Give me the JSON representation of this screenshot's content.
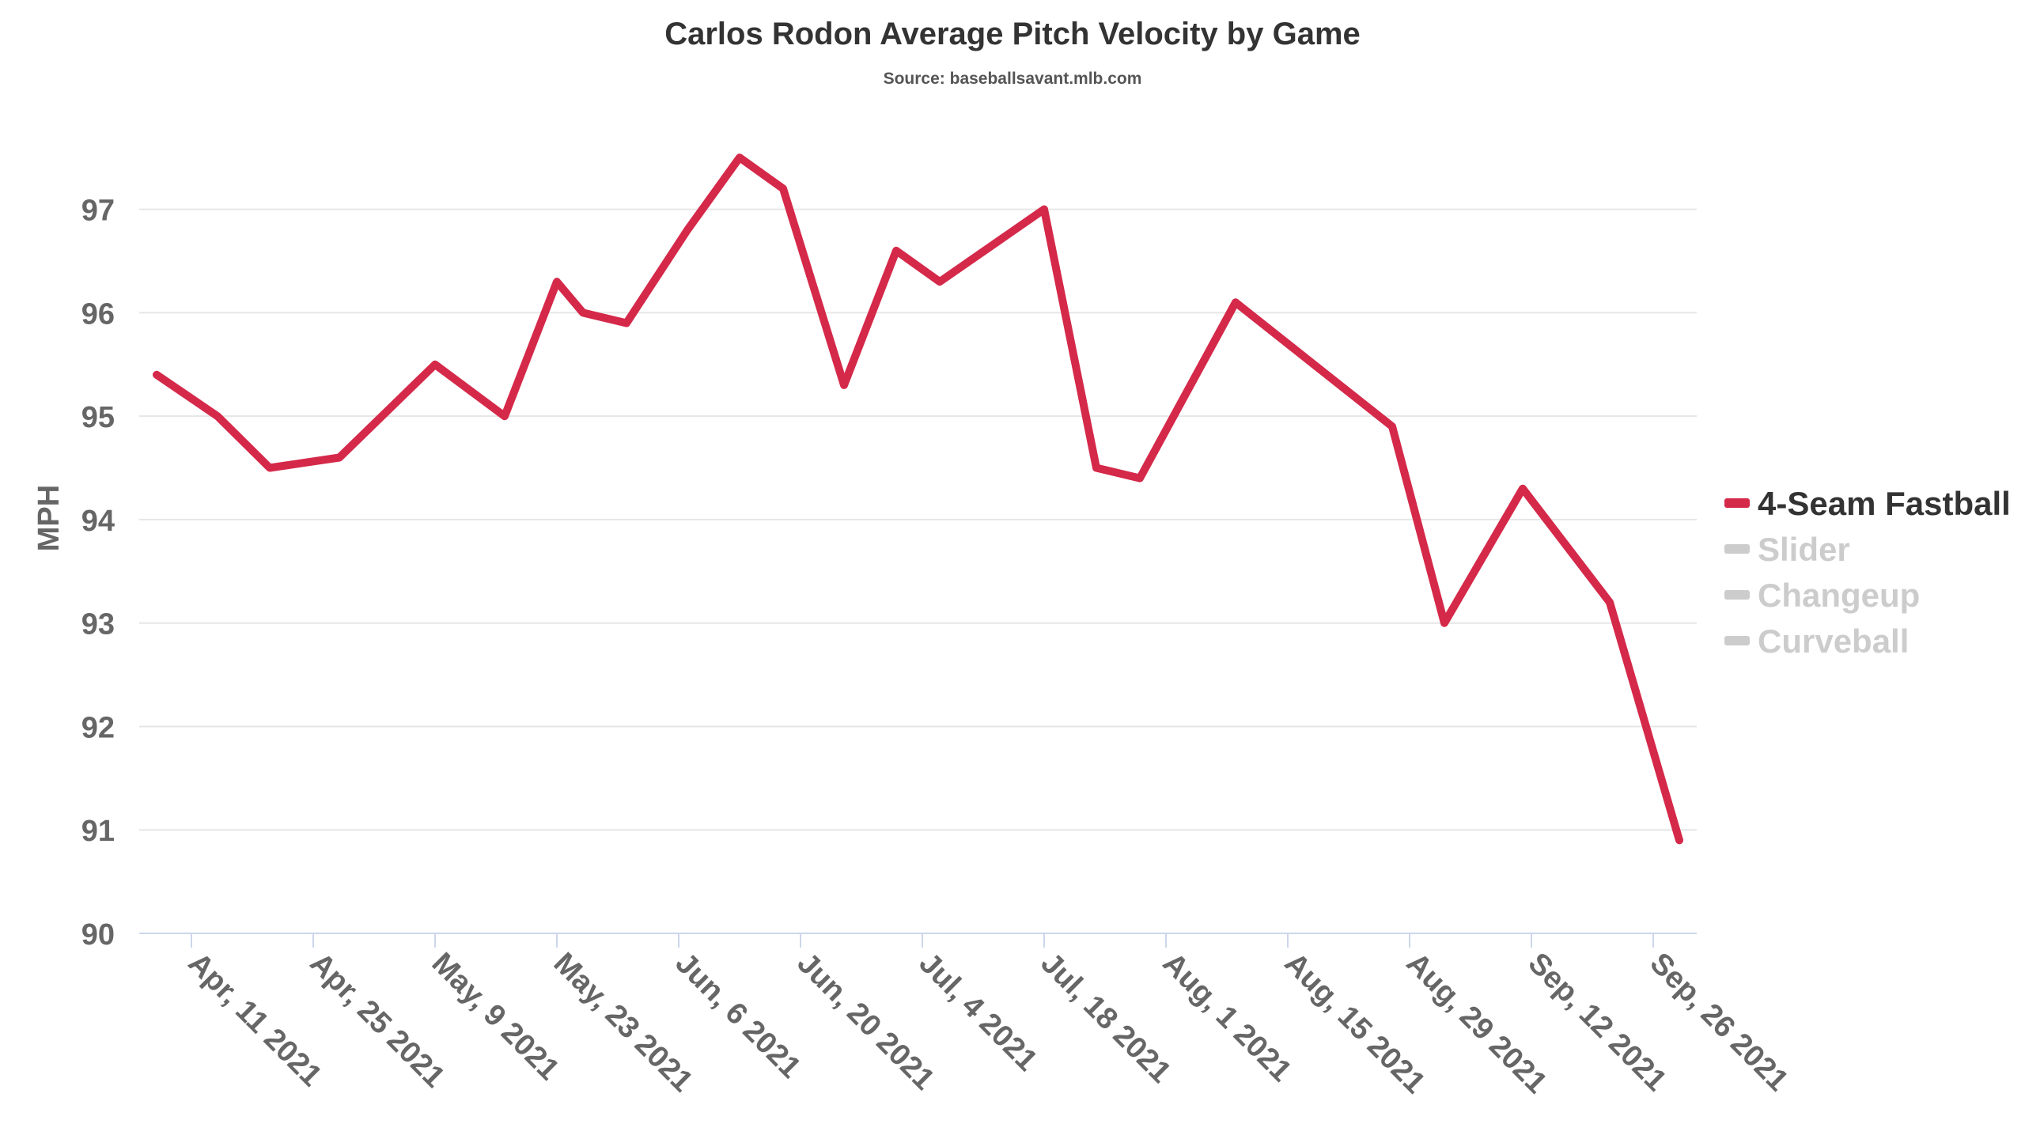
{
  "chart_data": {
    "type": "line",
    "title": "Carlos Rodon Average Pitch Velocity by Game",
    "subtitle": "Source: baseballsavant.mlb.com",
    "ylabel": "MPH",
    "xlabel": "",
    "ylim": [
      90,
      97.8
    ],
    "yticks": [
      90,
      91,
      92,
      93,
      94,
      95,
      96,
      97
    ],
    "xrange": [
      "2021-04-05",
      "2021-10-01"
    ],
    "xticks": [
      {
        "date": "2021-04-11",
        "label": "Apr, 11 2021"
      },
      {
        "date": "2021-04-25",
        "label": "Apr, 25 2021"
      },
      {
        "date": "2021-05-09",
        "label": "May, 9 2021"
      },
      {
        "date": "2021-05-23",
        "label": "May, 23 2021"
      },
      {
        "date": "2021-06-06",
        "label": "Jun, 6 2021"
      },
      {
        "date": "2021-06-20",
        "label": "Jun, 20 2021"
      },
      {
        "date": "2021-07-04",
        "label": "Jul, 4 2021"
      },
      {
        "date": "2021-07-18",
        "label": "Jul, 18 2021"
      },
      {
        "date": "2021-08-01",
        "label": "Aug, 1 2021"
      },
      {
        "date": "2021-08-15",
        "label": "Aug, 15 2021"
      },
      {
        "date": "2021-08-29",
        "label": "Aug, 29 2021"
      },
      {
        "date": "2021-09-12",
        "label": "Sep, 12 2021"
      },
      {
        "date": "2021-09-26",
        "label": "Sep, 26 2021"
      }
    ],
    "grid": true,
    "legend_position": "right",
    "series": [
      {
        "name": "4-Seam Fastball",
        "color": "#d5294a",
        "visible": true,
        "points": [
          {
            "x": "2021-04-07",
            "y": 95.4
          },
          {
            "x": "2021-04-14",
            "y": 95.0
          },
          {
            "x": "2021-04-20",
            "y": 94.5
          },
          {
            "x": "2021-04-28",
            "y": 94.6
          },
          {
            "x": "2021-05-09",
            "y": 95.5
          },
          {
            "x": "2021-05-17",
            "y": 95.0
          },
          {
            "x": "2021-05-23",
            "y": 96.3
          },
          {
            "x": "2021-05-26",
            "y": 96.0
          },
          {
            "x": "2021-05-31",
            "y": 95.9
          },
          {
            "x": "2021-06-07",
            "y": 96.8
          },
          {
            "x": "2021-06-13",
            "y": 97.5
          },
          {
            "x": "2021-06-18",
            "y": 97.2
          },
          {
            "x": "2021-06-25",
            "y": 95.3
          },
          {
            "x": "2021-07-01",
            "y": 96.6
          },
          {
            "x": "2021-07-06",
            "y": 96.3
          },
          {
            "x": "2021-07-18",
            "y": 97.0
          },
          {
            "x": "2021-07-24",
            "y": 94.5
          },
          {
            "x": "2021-07-29",
            "y": 94.4
          },
          {
            "x": "2021-08-09",
            "y": 96.1
          },
          {
            "x": "2021-08-27",
            "y": 94.9
          },
          {
            "x": "2021-09-02",
            "y": 93.0
          },
          {
            "x": "2021-09-11",
            "y": 94.3
          },
          {
            "x": "2021-09-21",
            "y": 93.2
          },
          {
            "x": "2021-09-29",
            "y": 90.9
          }
        ]
      },
      {
        "name": "Slider",
        "color": "#cccccc",
        "visible": false,
        "points": []
      },
      {
        "name": "Changeup",
        "color": "#cccccc",
        "visible": false,
        "points": []
      },
      {
        "name": "Curveball",
        "color": "#cccccc",
        "visible": false,
        "points": []
      }
    ]
  },
  "legend_colors": {
    "active_text": "#333333",
    "inactive_text": "#cccccc",
    "inactive_swatch": "#cccccc"
  }
}
